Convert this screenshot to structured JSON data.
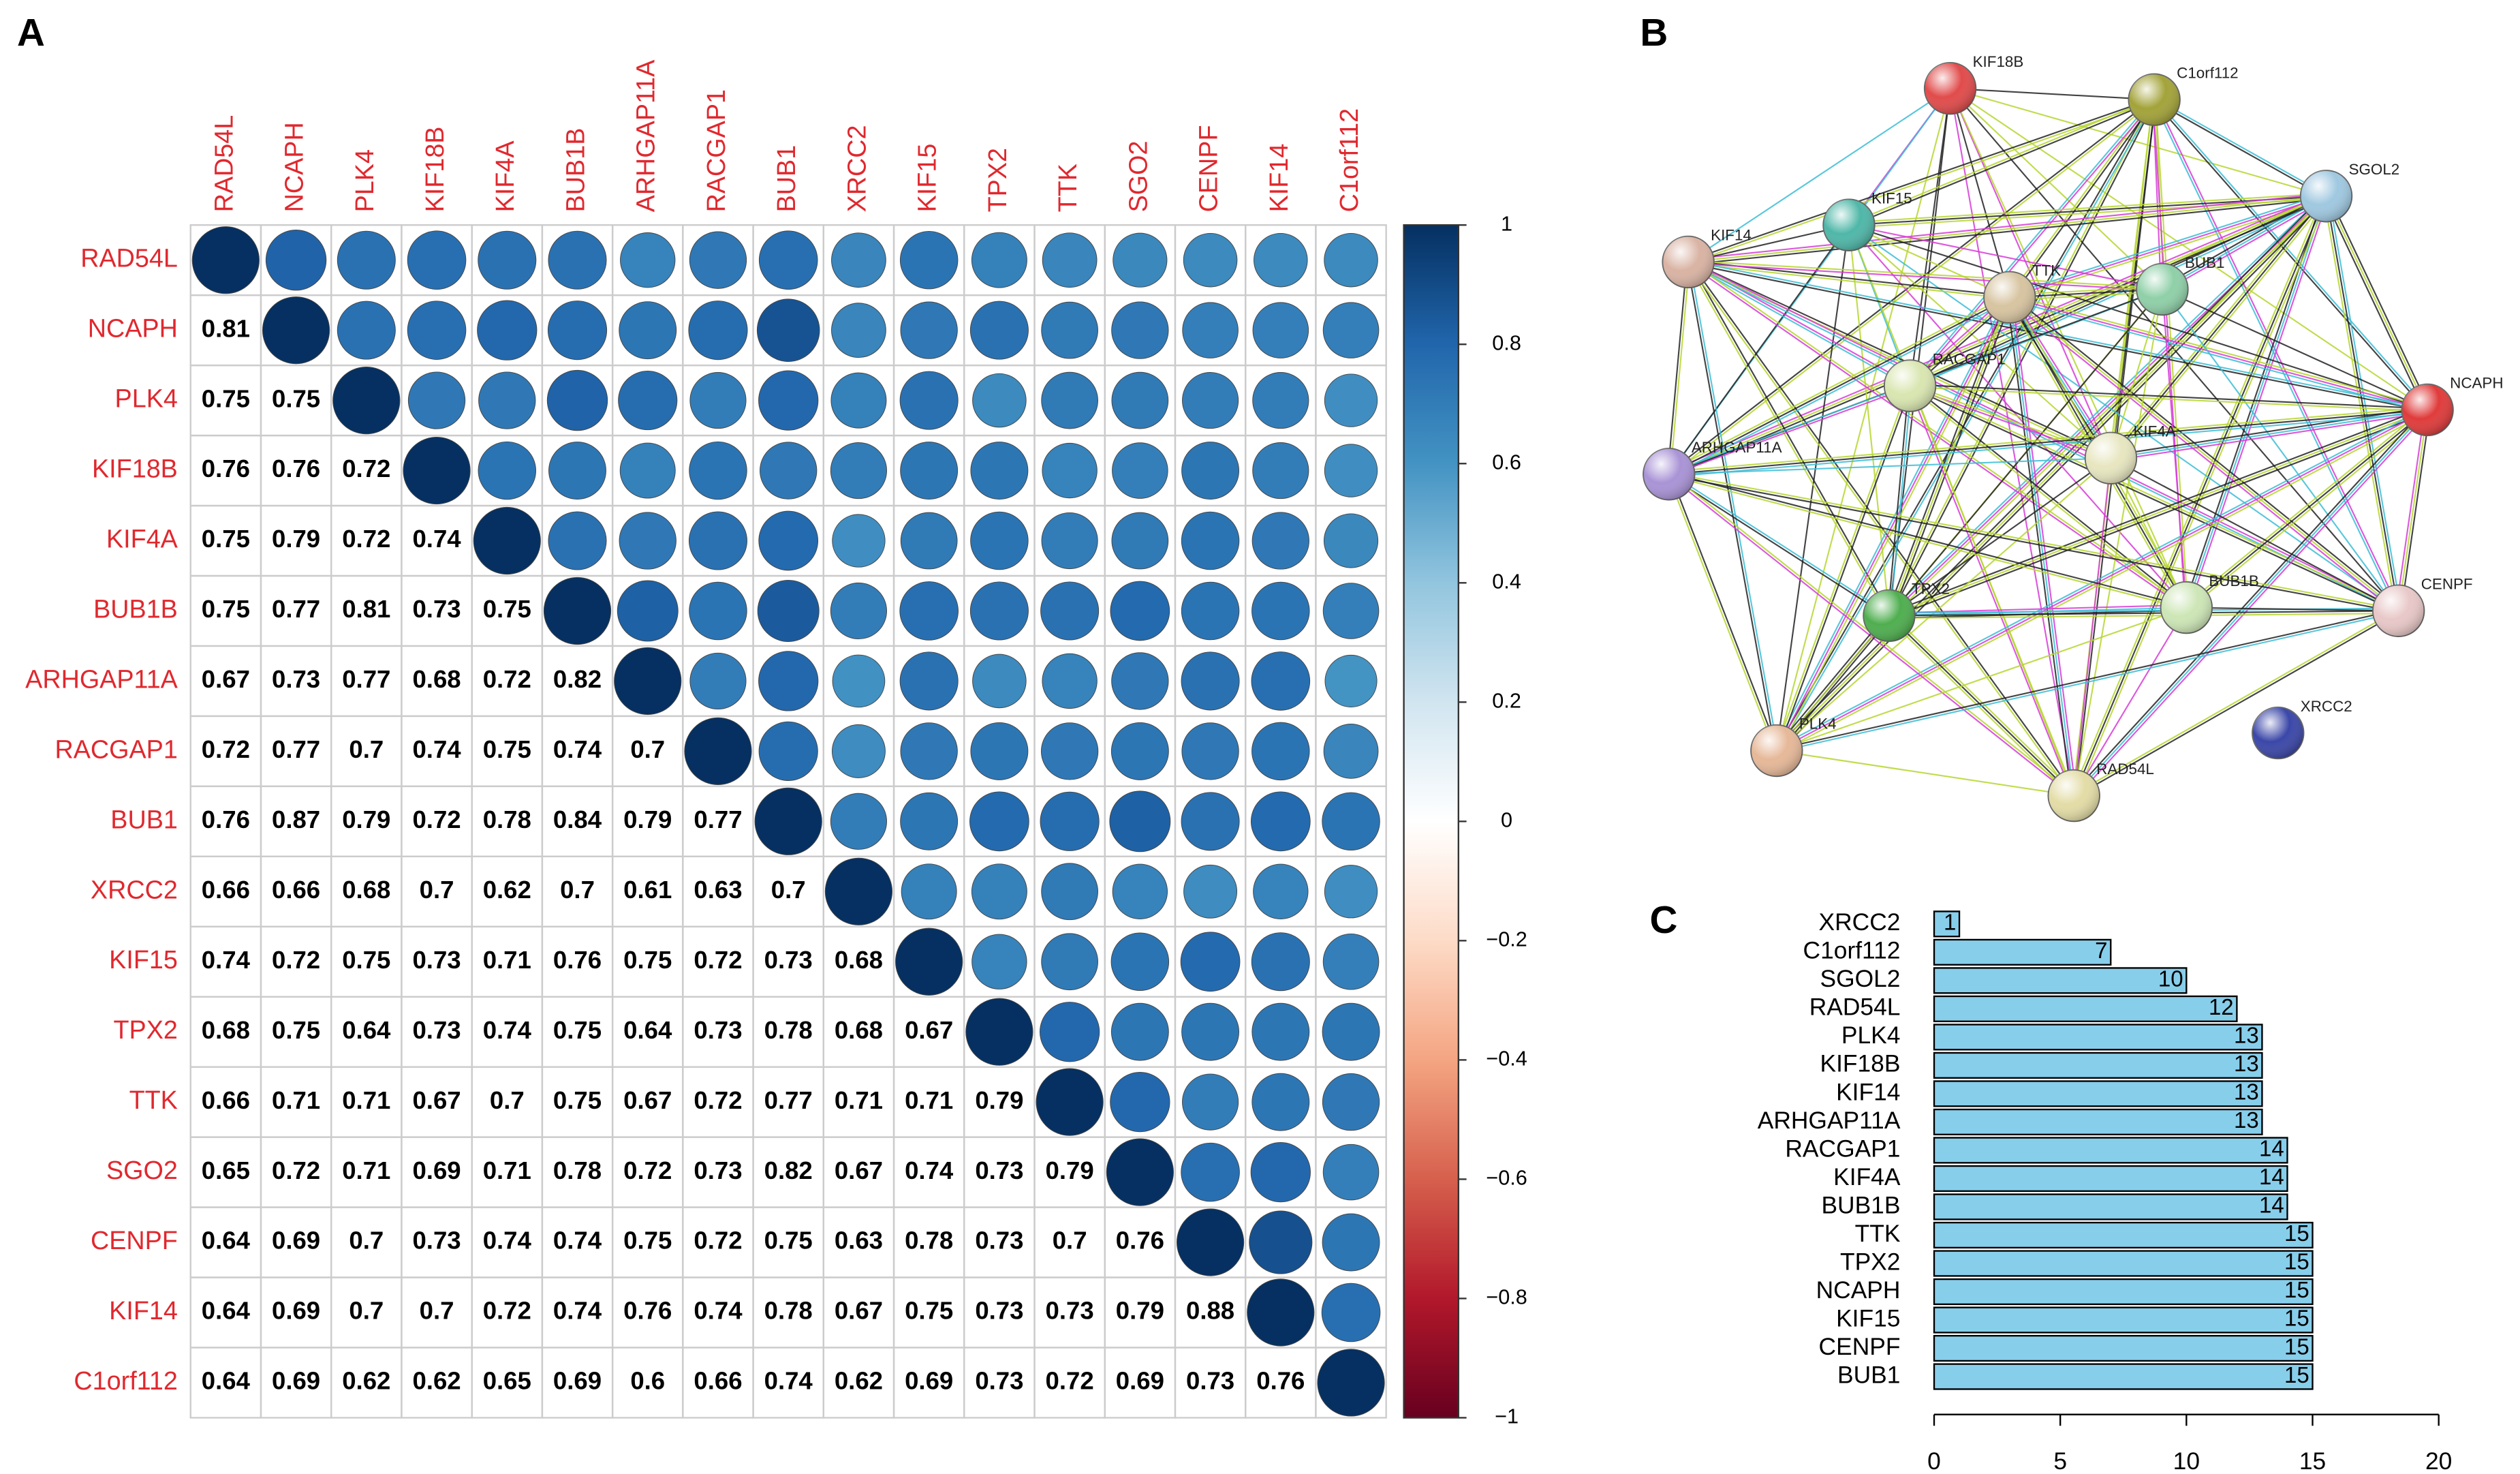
{
  "chart_data": [
    {
      "type": "corrplot",
      "panel": "A",
      "variables": [
        "RAD54L",
        "NCAPH",
        "PLK4",
        "KIF18B",
        "KIF4A",
        "BUB1B",
        "ARHGAP11A",
        "RACGAP1",
        "BUB1",
        "XRCC2",
        "KIF15",
        "TPX2",
        "TTK",
        "SGO2",
        "CENPF",
        "KIF14",
        "C1orf112"
      ],
      "values": [
        [
          1
        ],
        [
          0.81,
          1
        ],
        [
          0.75,
          0.75,
          1
        ],
        [
          0.76,
          0.76,
          0.72,
          1
        ],
        [
          0.75,
          0.79,
          0.72,
          0.74,
          1
        ],
        [
          0.75,
          0.77,
          0.81,
          0.73,
          0.75,
          1
        ],
        [
          0.67,
          0.73,
          0.77,
          0.68,
          0.72,
          0.82,
          1
        ],
        [
          0.72,
          0.77,
          0.7,
          0.74,
          0.75,
          0.74,
          0.7,
          1
        ],
        [
          0.76,
          0.87,
          0.79,
          0.72,
          0.78,
          0.84,
          0.79,
          0.77,
          1
        ],
        [
          0.66,
          0.66,
          0.68,
          0.7,
          0.62,
          0.7,
          0.61,
          0.63,
          0.7,
          1
        ],
        [
          0.74,
          0.72,
          0.75,
          0.73,
          0.71,
          0.76,
          0.75,
          0.72,
          0.73,
          0.68,
          1
        ],
        [
          0.68,
          0.75,
          0.64,
          0.73,
          0.74,
          0.75,
          0.64,
          0.73,
          0.78,
          0.68,
          0.67,
          1
        ],
        [
          0.66,
          0.71,
          0.71,
          0.67,
          0.7,
          0.75,
          0.67,
          0.72,
          0.77,
          0.71,
          0.71,
          0.79,
          1
        ],
        [
          0.65,
          0.72,
          0.71,
          0.69,
          0.71,
          0.78,
          0.72,
          0.73,
          0.82,
          0.67,
          0.74,
          0.73,
          0.79,
          1
        ],
        [
          0.64,
          0.69,
          0.7,
          0.73,
          0.74,
          0.74,
          0.75,
          0.72,
          0.75,
          0.63,
          0.78,
          0.73,
          0.7,
          0.76,
          1
        ],
        [
          0.64,
          0.69,
          0.7,
          0.7,
          0.72,
          0.74,
          0.76,
          0.74,
          0.78,
          0.67,
          0.75,
          0.73,
          0.73,
          0.79,
          0.88,
          1
        ],
        [
          0.64,
          0.69,
          0.62,
          0.62,
          0.65,
          0.69,
          0.6,
          0.66,
          0.74,
          0.62,
          0.69,
          0.73,
          0.72,
          0.69,
          0.73,
          0.76,
          1
        ]
      ],
      "label_color": "#e0282e",
      "colormap": [
        "#67001F",
        "#B2182B",
        "#D6604D",
        "#F4A582",
        "#FDDBC7",
        "#FFFFFF",
        "#D1E5F0",
        "#92C5DE",
        "#4393C3",
        "#2166AC",
        "#053061"
      ],
      "clim": [
        -1,
        1
      ],
      "cticks": [
        1,
        0.8,
        0.6,
        0.4,
        0.2,
        0,
        {
          "value": -0.2,
          "label": "−0.2"
        },
        {
          "value": -0.4,
          "label": "−0.4"
        },
        {
          "value": -0.6,
          "label": "−0.6"
        },
        {
          "value": -0.8,
          "label": "−0.8"
        },
        {
          "value": -1,
          "label": "−1"
        }
      ]
    },
    {
      "type": "network",
      "panel": "B",
      "nodes": [
        "KIF18B",
        "C1orf112",
        "SGOL2",
        "KIF15",
        "KIF14",
        "TTK",
        "BUB1",
        "RACGAP1",
        "NCAPH",
        "KIF4A",
        "ARHGAP11A",
        "TPX2",
        "BUB1B",
        "CENPF",
        "XRCC2",
        "PLK4",
        "RAD54L"
      ]
    },
    {
      "type": "barh",
      "panel": "C",
      "categories": [
        "XRCC2",
        "C1orf112",
        "SGOL2",
        "RAD54L",
        "PLK4",
        "KIF18B",
        "KIF14",
        "ARHGAP11A",
        "RACGAP1",
        "KIF4A",
        "BUB1B",
        "TTK",
        "TPX2",
        "NCAPH",
        "KIF15",
        "CENPF",
        "BUB1"
      ],
      "values": [
        1,
        7,
        10,
        12,
        13,
        13,
        13,
        13,
        14,
        14,
        14,
        15,
        15,
        15,
        15,
        15,
        15
      ],
      "color": "#87CEEB",
      "xlim": [
        0,
        20
      ],
      "xticks": [
        0,
        5,
        10,
        15,
        20
      ]
    }
  ]
}
